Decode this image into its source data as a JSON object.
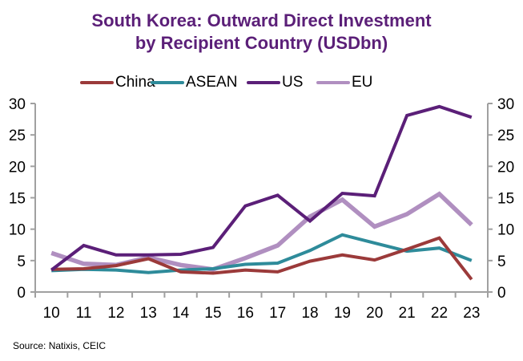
{
  "title_lines": [
    "South Korea: Outward Direct Investment",
    "by Recipient Country (USDbn)"
  ],
  "source": "Source: Natixis, CEIC",
  "chart_data": {
    "type": "line",
    "title": "South Korea: Outward Direct Investment by Recipient Country (USDbn)",
    "xlabel": "",
    "ylabel": "",
    "categories": [
      "10",
      "11",
      "12",
      "13",
      "14",
      "15",
      "16",
      "17",
      "18",
      "19",
      "20",
      "21",
      "22",
      "23"
    ],
    "ylim": [
      0,
      30
    ],
    "yticks": [
      "0",
      "5",
      "10",
      "15",
      "20",
      "25",
      "30"
    ],
    "secondary_yticks": [
      "0",
      "5",
      "10",
      "15",
      "20",
      "25",
      "30"
    ],
    "grid": false,
    "legend_position": "top",
    "series": [
      {
        "name": "China",
        "color": "#9B3A3A",
        "values": [
          3.6,
          3.7,
          4.2,
          5.3,
          3.2,
          3.0,
          3.5,
          3.2,
          4.9,
          5.9,
          5.1,
          6.8,
          8.6,
          2.0
        ]
      },
      {
        "name": "ASEAN",
        "color": "#2E8B9A",
        "values": [
          3.4,
          3.6,
          3.5,
          3.1,
          3.5,
          3.7,
          4.4,
          4.6,
          6.6,
          9.1,
          7.8,
          6.5,
          7.0,
          5.0
        ]
      },
      {
        "name": "US",
        "color": "#5B1F78",
        "values": [
          3.5,
          7.4,
          5.9,
          5.9,
          6.0,
          7.1,
          13.7,
          15.4,
          11.3,
          15.7,
          15.3,
          28.1,
          29.5,
          27.8
        ]
      },
      {
        "name": "EU",
        "color": "#B08FC0",
        "values": [
          6.2,
          4.5,
          4.3,
          5.5,
          4.3,
          3.6,
          5.4,
          7.4,
          12.0,
          14.7,
          10.4,
          12.4,
          15.6,
          10.7
        ]
      }
    ]
  }
}
